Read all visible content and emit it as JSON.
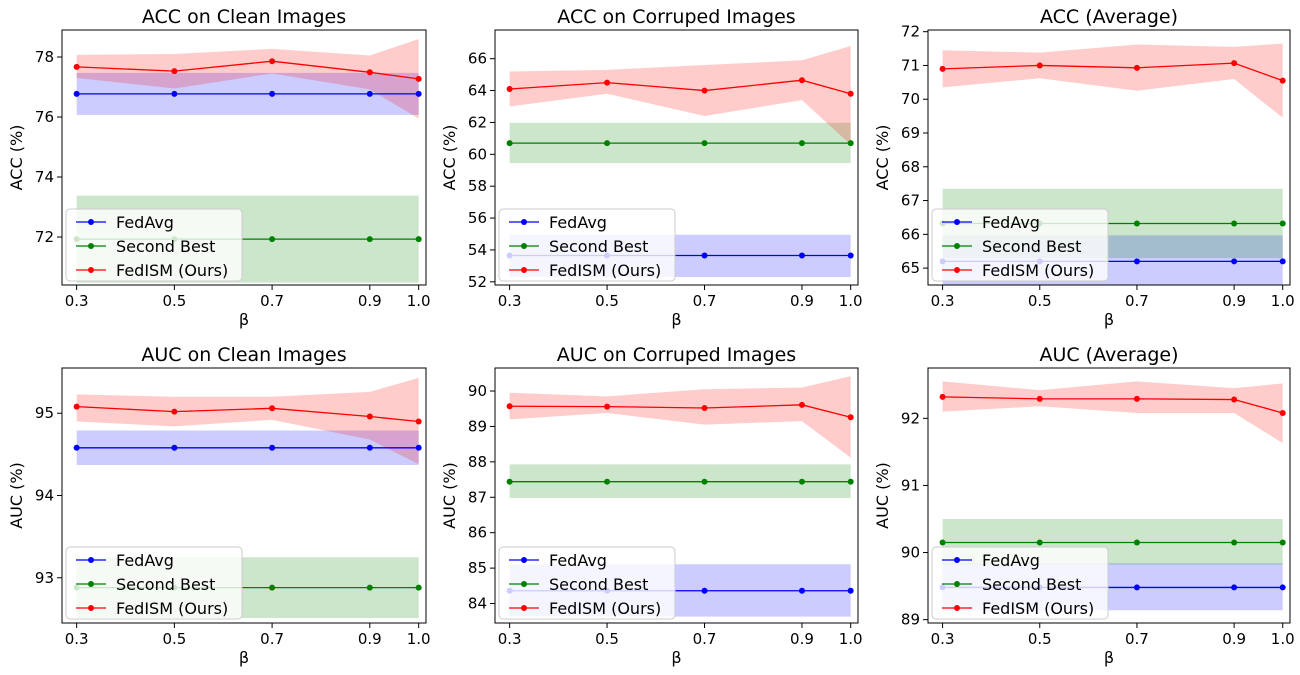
{
  "chart_data": [
    {
      "type": "line",
      "title": "ACC on Clean Images",
      "xlabel": "β",
      "ylabel": "ACC (%)",
      "x": [
        0.3,
        0.5,
        0.7,
        0.9,
        1.0
      ],
      "xticks": [
        "0.3",
        "0.5",
        "0.7",
        "0.9",
        "1.0"
      ],
      "ylim": [
        70.4,
        78.9
      ],
      "yticks": [
        72,
        74,
        76,
        78
      ],
      "legend": "lower-left",
      "series": [
        {
          "name": "FedAvg",
          "color": "#0000ff",
          "values": [
            76.77,
            76.77,
            76.77,
            76.77,
            76.77
          ],
          "lower": [
            76.07,
            76.07,
            76.07,
            76.07,
            76.07
          ],
          "upper": [
            77.47,
            77.47,
            77.47,
            77.47,
            77.47
          ]
        },
        {
          "name": "Second Best",
          "color": "#008000",
          "values": [
            71.93,
            71.93,
            71.93,
            71.93,
            71.93
          ],
          "lower": [
            70.48,
            70.48,
            70.48,
            70.48,
            70.48
          ],
          "upper": [
            73.38,
            73.38,
            73.38,
            73.38,
            73.38
          ]
        },
        {
          "name": "FedISM (Ours)",
          "color": "#ff0000",
          "values": [
            77.67,
            77.53,
            77.86,
            77.49,
            77.27
          ],
          "lower": [
            77.3,
            76.95,
            77.45,
            76.92,
            75.95
          ],
          "upper": [
            78.07,
            78.1,
            78.27,
            78.05,
            78.6
          ]
        }
      ]
    },
    {
      "type": "line",
      "title": "ACC on Corruped Images",
      "xlabel": "β",
      "ylabel": "ACC (%)",
      "x": [
        0.3,
        0.5,
        0.7,
        0.9,
        1.0
      ],
      "xticks": [
        "0.3",
        "0.5",
        "0.7",
        "0.9",
        "1.0"
      ],
      "ylim": [
        51.8,
        67.8
      ],
      "yticks": [
        52,
        54,
        56,
        58,
        60,
        62,
        64,
        66
      ],
      "legend": "lower-left",
      "series": [
        {
          "name": "FedAvg",
          "color": "#0000ff",
          "values": [
            53.65,
            53.65,
            53.65,
            53.65,
            53.65
          ],
          "lower": [
            52.3,
            52.3,
            52.3,
            52.3,
            52.3
          ],
          "upper": [
            54.95,
            54.95,
            54.95,
            54.95,
            54.95
          ]
        },
        {
          "name": "Second Best",
          "color": "#008000",
          "values": [
            60.7,
            60.7,
            60.7,
            60.7,
            60.7
          ],
          "lower": [
            59.45,
            59.45,
            59.45,
            59.45,
            59.45
          ],
          "upper": [
            61.98,
            61.98,
            61.98,
            61.98,
            61.98
          ]
        },
        {
          "name": "FedISM (Ours)",
          "color": "#ff0000",
          "values": [
            64.1,
            64.5,
            64.0,
            64.65,
            63.8
          ],
          "lower": [
            63.0,
            63.8,
            62.4,
            63.4,
            60.6
          ],
          "upper": [
            65.2,
            65.3,
            65.6,
            65.9,
            66.8
          ]
        }
      ]
    },
    {
      "type": "line",
      "title": "ACC (Average)",
      "xlabel": "β",
      "ylabel": "ACC (%)",
      "x": [
        0.3,
        0.5,
        0.7,
        0.9,
        1.0
      ],
      "xticks": [
        "0.3",
        "0.5",
        "0.7",
        "0.9",
        "1.0"
      ],
      "ylim": [
        64.5,
        72.05
      ],
      "yticks": [
        65,
        66,
        67,
        68,
        69,
        70,
        71,
        72
      ],
      "legend": "lower-left",
      "series": [
        {
          "name": "FedAvg",
          "color": "#0000ff",
          "values": [
            65.2,
            65.2,
            65.2,
            65.2,
            65.2
          ],
          "lower": [
            64.5,
            64.5,
            64.5,
            64.5,
            64.5
          ],
          "upper": [
            65.97,
            65.97,
            65.97,
            65.97,
            65.97
          ]
        },
        {
          "name": "Second Best",
          "color": "#008000",
          "values": [
            66.32,
            66.32,
            66.32,
            66.32,
            66.32
          ],
          "lower": [
            65.3,
            65.3,
            65.3,
            65.3,
            65.3
          ],
          "upper": [
            67.35,
            67.35,
            67.35,
            67.35,
            67.35
          ]
        },
        {
          "name": "FedISM (Ours)",
          "color": "#ff0000",
          "values": [
            70.9,
            71.0,
            70.93,
            71.07,
            70.55
          ],
          "lower": [
            70.35,
            70.62,
            70.25,
            70.6,
            69.45
          ],
          "upper": [
            71.45,
            71.38,
            71.62,
            71.55,
            71.65
          ]
        }
      ]
    },
    {
      "type": "line",
      "title": "AUC on Clean Images",
      "xlabel": "β",
      "ylabel": "AUC (%)",
      "x": [
        0.3,
        0.5,
        0.7,
        0.9,
        1.0
      ],
      "xticks": [
        "0.3",
        "0.5",
        "0.7",
        "0.9",
        "1.0"
      ],
      "ylim": [
        92.45,
        95.55
      ],
      "yticks": [
        93,
        94,
        95
      ],
      "legend": "lower-left",
      "series": [
        {
          "name": "FedAvg",
          "color": "#0000ff",
          "values": [
            94.58,
            94.58,
            94.58,
            94.58,
            94.58
          ],
          "lower": [
            94.37,
            94.37,
            94.37,
            94.37,
            94.37
          ],
          "upper": [
            94.79,
            94.79,
            94.79,
            94.79,
            94.79
          ]
        },
        {
          "name": "Second Best",
          "color": "#008000",
          "values": [
            92.88,
            92.88,
            92.88,
            92.88,
            92.88
          ],
          "lower": [
            92.51,
            92.51,
            92.51,
            92.51,
            92.51
          ],
          "upper": [
            93.25,
            93.25,
            93.25,
            93.25,
            93.25
          ]
        },
        {
          "name": "FedISM (Ours)",
          "color": "#ff0000",
          "values": [
            95.08,
            95.02,
            95.06,
            94.96,
            94.9
          ],
          "lower": [
            94.9,
            94.84,
            94.92,
            94.68,
            94.38
          ],
          "upper": [
            95.23,
            95.2,
            95.2,
            95.26,
            95.43
          ]
        }
      ]
    },
    {
      "type": "line",
      "title": "AUC on Corruped Images",
      "xlabel": "β",
      "ylabel": "AUC (%)",
      "x": [
        0.3,
        0.5,
        0.7,
        0.9,
        1.0
      ],
      "xticks": [
        "0.3",
        "0.5",
        "0.7",
        "0.9",
        "1.0"
      ],
      "ylim": [
        83.45,
        90.65
      ],
      "yticks": [
        84,
        85,
        86,
        87,
        88,
        89,
        90
      ],
      "legend": "lower-left",
      "series": [
        {
          "name": "FedAvg",
          "color": "#0000ff",
          "values": [
            84.36,
            84.36,
            84.36,
            84.36,
            84.36
          ],
          "lower": [
            83.63,
            83.63,
            83.63,
            83.63,
            83.63
          ],
          "upper": [
            85.11,
            85.11,
            85.11,
            85.11,
            85.11
          ]
        },
        {
          "name": "Second Best",
          "color": "#008000",
          "values": [
            87.44,
            87.44,
            87.44,
            87.44,
            87.44
          ],
          "lower": [
            86.98,
            86.98,
            86.98,
            86.98,
            86.98
          ],
          "upper": [
            87.93,
            87.93,
            87.93,
            87.93,
            87.93
          ]
        },
        {
          "name": "FedISM (Ours)",
          "color": "#ff0000",
          "values": [
            89.57,
            89.56,
            89.52,
            89.61,
            89.26
          ],
          "lower": [
            89.2,
            89.38,
            89.05,
            89.15,
            88.12
          ],
          "upper": [
            89.95,
            89.85,
            90.05,
            90.1,
            90.42
          ]
        }
      ]
    },
    {
      "type": "line",
      "title": "AUC (Average)",
      "xlabel": "β",
      "ylabel": "AUC (%)",
      "x": [
        0.3,
        0.5,
        0.7,
        0.9,
        1.0
      ],
      "xticks": [
        "0.3",
        "0.5",
        "0.7",
        "0.9",
        "1.0"
      ],
      "ylim": [
        88.95,
        92.75
      ],
      "yticks": [
        89,
        90,
        91,
        92
      ],
      "legend": "lower-left",
      "series": [
        {
          "name": "FedAvg",
          "color": "#0000ff",
          "values": [
            89.48,
            89.48,
            89.48,
            89.48,
            89.48
          ],
          "lower": [
            89.14,
            89.14,
            89.14,
            89.14,
            89.14
          ],
          "upper": [
            89.84,
            89.84,
            89.84,
            89.84,
            89.84
          ]
        },
        {
          "name": "Second Best",
          "color": "#008000",
          "values": [
            90.15,
            90.15,
            90.15,
            90.15,
            90.15
          ],
          "lower": [
            89.82,
            89.82,
            89.82,
            89.82,
            89.82
          ],
          "upper": [
            90.5,
            90.5,
            90.5,
            90.5,
            90.5
          ]
        },
        {
          "name": "FedISM (Ours)",
          "color": "#ff0000",
          "values": [
            92.32,
            92.29,
            92.29,
            92.28,
            92.08
          ],
          "lower": [
            92.1,
            92.18,
            92.08,
            92.08,
            91.63
          ],
          "upper": [
            92.55,
            92.42,
            92.55,
            92.45,
            92.52
          ]
        }
      ]
    }
  ]
}
